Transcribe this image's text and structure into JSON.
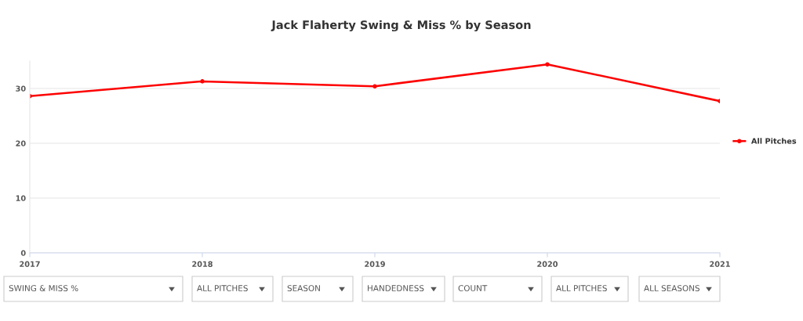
{
  "chart_data": {
    "type": "line",
    "title": "Jack Flaherty Swing & Miss % by Season",
    "x": [
      2017,
      2018,
      2019,
      2020,
      2021
    ],
    "series": [
      {
        "name": "All Pitches",
        "color": "#ff0000",
        "values": [
          28.6,
          31.3,
          30.4,
          34.4,
          27.7
        ]
      }
    ],
    "xlim": [
      2017,
      2021
    ],
    "xticks": [
      2017,
      2018,
      2019,
      2020,
      2021
    ],
    "ylim": [
      0,
      35
    ],
    "yticks": [
      0,
      10,
      20,
      30
    ],
    "grid": "y",
    "legend": "right",
    "marker": "circle",
    "line_style": "solid",
    "annotations": [
      "SWING & MISS %",
      "ALL PITCHES",
      "SEASON",
      "HANDEDNESS",
      "COUNT",
      "ALL PITCHES",
      "ALL SEASONS"
    ]
  }
}
